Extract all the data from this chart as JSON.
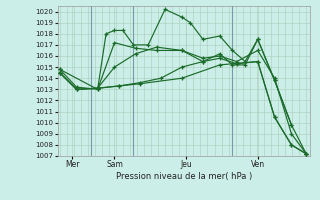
{
  "bg_color": "#cceee8",
  "grid_color": "#aaccbb",
  "line_color": "#1a6b2a",
  "xlabel": "Pression niveau de la mer( hPa )",
  "ylim": [
    1007,
    1020.5
  ],
  "yticks": [
    1007,
    1008,
    1009,
    1010,
    1011,
    1012,
    1013,
    1014,
    1015,
    1016,
    1017,
    1018,
    1019,
    1020
  ],
  "xlim": [
    -0.05,
    5.95
  ],
  "xtick_positions": [
    0.3,
    1.3,
    3.0,
    4.7
  ],
  "xtick_labels": [
    "Mer",
    "Sam",
    "Jeu",
    "Ven"
  ],
  "vline_positions": [
    0.75,
    1.75,
    4.1
  ],
  "series": [
    {
      "x": [
        0.0,
        0.4,
        0.9,
        1.1,
        1.3,
        1.5,
        1.75,
        2.1,
        2.5,
        2.9,
        3.1,
        3.4,
        3.8,
        4.1,
        4.4,
        4.7,
        5.1,
        5.5
      ],
      "y": [
        1014.8,
        1013.2,
        1013.0,
        1018.0,
        1018.3,
        1018.3,
        1017.0,
        1017.0,
        1020.2,
        1019.5,
        1019.0,
        1017.5,
        1017.8,
        1016.5,
        1015.5,
        1017.5,
        1013.8,
        1009.8
      ]
    },
    {
      "x": [
        0.0,
        0.4,
        0.9,
        1.3,
        1.8,
        2.3,
        2.9,
        3.4,
        3.8,
        4.2,
        4.7,
        5.1,
        5.5,
        5.85
      ],
      "y": [
        1014.5,
        1013.0,
        1013.1,
        1015.0,
        1016.2,
        1016.8,
        1016.5,
        1015.8,
        1016.0,
        1015.5,
        1016.5,
        1014.0,
        1009.0,
        1007.2
      ]
    },
    {
      "x": [
        0.0,
        0.4,
        0.9,
        1.4,
        1.9,
        2.4,
        2.9,
        3.4,
        3.8,
        4.2,
        4.7,
        5.1,
        5.5,
        5.85
      ],
      "y": [
        1014.5,
        1013.0,
        1013.1,
        1013.3,
        1013.6,
        1014.0,
        1015.0,
        1015.5,
        1015.8,
        1015.3,
        1015.5,
        1010.5,
        1008.0,
        1007.2
      ]
    },
    {
      "x": [
        0.0,
        0.4,
        0.9,
        1.4,
        1.9,
        2.9,
        3.8,
        4.7,
        5.1,
        5.5,
        5.85
      ],
      "y": [
        1014.5,
        1013.0,
        1013.1,
        1013.3,
        1013.5,
        1014.0,
        1015.2,
        1015.5,
        1010.5,
        1008.0,
        1007.2
      ]
    },
    {
      "x": [
        0.0,
        0.9,
        1.3,
        1.8,
        2.3,
        2.9,
        3.4,
        3.8,
        4.1,
        4.4,
        4.7,
        5.1,
        5.5,
        5.85
      ],
      "y": [
        1014.8,
        1013.0,
        1017.2,
        1016.7,
        1016.5,
        1016.5,
        1015.5,
        1016.2,
        1015.2,
        1015.2,
        1017.5,
        1013.8,
        1009.8,
        1007.2
      ]
    }
  ]
}
